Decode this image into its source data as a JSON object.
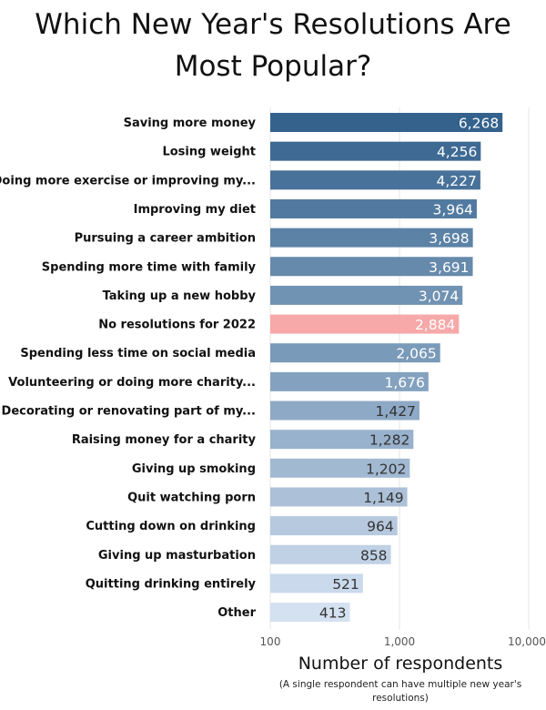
{
  "chart_data": {
    "type": "bar",
    "orientation": "horizontal",
    "title": "Which New Year's Resolutions Are Most Popular?",
    "xlabel": "Number of respondents",
    "note": "(A single respondent can have multiple new year's resolutions)",
    "xscale": "log",
    "xlim": [
      100,
      10000
    ],
    "xticks": [
      "100",
      "1,000",
      "10,000"
    ],
    "grid": true,
    "categories": [
      "Saving more money",
      "Losing weight",
      "Doing more exercise or improving my...",
      "Improving my diet",
      "Pursuing a career ambition",
      "Spending more time with family",
      "Taking up a new hobby",
      "No resolutions for 2022",
      "Spending less time on social media",
      "Volunteering or doing more charity...",
      "Decorating or renovating part of my...",
      "Raising money for a charity",
      "Giving up smoking",
      "Quit watching porn",
      "Cutting down on drinking",
      "Giving up masturbation",
      "Quitting drinking entirely",
      "Other"
    ],
    "values": [
      6268,
      4256,
      4227,
      3964,
      3698,
      3691,
      3074,
      2884,
      2065,
      1676,
      1427,
      1282,
      1202,
      1149,
      964,
      858,
      521,
      413
    ],
    "labels": [
      "6,268",
      "4,256",
      "4,227",
      "3,964",
      "3,698",
      "3,691",
      "3,074",
      "2,884",
      "2,065",
      "1,676",
      "1,427",
      "1,282",
      "1,202",
      "1,149",
      "964",
      "858",
      "521",
      "413"
    ],
    "colors": {
      "dark": "#34628d",
      "light": "#d4e1f1",
      "highlight": "#f7a8a8",
      "highlight_category": "No resolutions for 2022"
    }
  }
}
